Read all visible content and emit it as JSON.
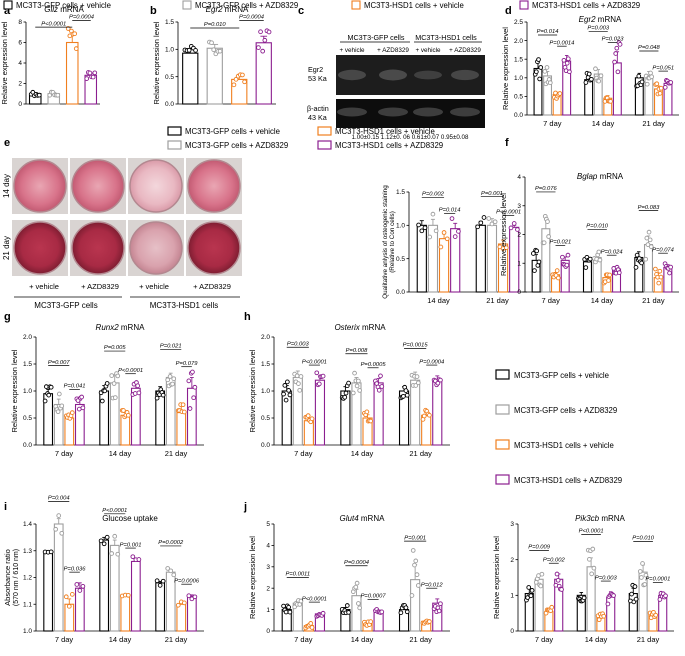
{
  "colors": {
    "gfp_vehicle": "#000000",
    "gfp_azd": "#9e9e9e",
    "hsd_vehicle": "#f07f1f",
    "hsd_azd": "#8b1e8f",
    "text": "#000000"
  },
  "legend": {
    "items": [
      {
        "label": "MC3T3-GFP cells + vehicle",
        "color": "#000000"
      },
      {
        "label": "MC3T3-GFP cells + AZD8329",
        "color": "#9e9e9e"
      },
      {
        "label": "MC3T3-HSD1 cells + vehicle",
        "color": "#f07f1f"
      },
      {
        "label": "MC3T3-HSD1 cells + AZD8329",
        "color": "#8b1e8f"
      }
    ]
  },
  "western": {
    "letter": "c",
    "group_labels": [
      "MC3T3-GFP cells",
      "MC3T3-HSD1 cells"
    ],
    "lane_labels": [
      "+ vehicle",
      "+ AZD8329",
      "+ vehicle",
      "+ AZD8329"
    ],
    "band_labels": [
      {
        "name": "Egr2",
        "size": "53 Ka"
      },
      {
        "name": "β-actin",
        "size": "43 Ka"
      }
    ],
    "quant": "1.00±0.15  1.12±0. 06  0.61±0.07  0.95±0.08",
    "band_intensity": [
      1.0,
      1.12,
      0.61,
      0.95
    ]
  },
  "staining": {
    "letter": "e",
    "row_labels": [
      "14 day",
      "21 day"
    ],
    "lane_labels": [
      "+ vehicle",
      "+ AZD8329",
      "+ vehicle",
      "+ AZD8329"
    ],
    "group_labels": [
      "MC3T3-GFP cells",
      "MC3T3-HSD1 cells"
    ]
  },
  "chart_data": [
    {
      "id": "a",
      "letter": "a",
      "type": "bar",
      "title": "Gilz mRNA",
      "title_italic": "Gilz",
      "title_rest": " mRNA",
      "ylabel": "Relative expression level",
      "ylim": [
        0,
        8
      ],
      "yticks": [
        0,
        2,
        4,
        6,
        8
      ],
      "categories": [
        "MC3T3-GFP + vehicle",
        "MC3T3-GFP + AZD8329",
        "MC3T3-HSD1 + vehicle",
        "MC3T3-HSD1 + AZD8329"
      ],
      "values": [
        1.0,
        1.0,
        6.0,
        2.8
      ],
      "errors": [
        0.1,
        0.1,
        0.7,
        0.2
      ],
      "brackets": [
        {
          "from": 0,
          "to": 2,
          "label": "P<0.0001"
        },
        {
          "from": 2,
          "to": 3,
          "label": "P=0.0004"
        }
      ]
    },
    {
      "id": "b",
      "letter": "b",
      "type": "bar",
      "title": "Egr2 mRNA",
      "title_italic": "Egr2",
      "title_rest": " mRNA",
      "ylabel": "Relative expression level",
      "ylim": [
        0,
        1.5
      ],
      "yticks": [
        0.0,
        0.5,
        1.0,
        1.5
      ],
      "categories": [
        "MC3T3-GFP + vehicle",
        "MC3T3-GFP + AZD8329",
        "MC3T3-HSD1 + vehicle",
        "MC3T3-HSD1 + AZD8329"
      ],
      "values": [
        0.93,
        1.02,
        0.45,
        1.12
      ],
      "errors": [
        0.08,
        0.07,
        0.05,
        0.12
      ],
      "brackets": [
        {
          "from": 0,
          "to": 2,
          "label": "P=0.010"
        },
        {
          "from": 2,
          "to": 3,
          "label": "P=0.0004"
        }
      ]
    },
    {
      "id": "d",
      "letter": "d",
      "type": "bar",
      "title": "Egr2 mRNA",
      "title_italic": "Egr2",
      "title_rest": " mRNA",
      "ylabel": "Relative expression level",
      "ylim": [
        0,
        2.5
      ],
      "yticks": [
        0.0,
        0.5,
        1.0,
        1.5,
        2.0,
        2.5
      ],
      "categories": [
        "7 day",
        "14 day",
        "21 day"
      ],
      "series": [
        {
          "name": "MC3T3-GFP cells + vehicle",
          "values": [
            1.25,
            0.95,
            1.0
          ],
          "errors": [
            0.15,
            0.1,
            0.12
          ]
        },
        {
          "name": "MC3T3-GFP cells + AZD8329",
          "values": [
            1.05,
            1.1,
            1.05
          ],
          "errors": [
            0.12,
            0.12,
            0.12
          ]
        },
        {
          "name": "MC3T3-HSD1 cells + vehicle",
          "values": [
            0.55,
            0.45,
            0.7
          ],
          "errors": [
            0.06,
            0.07,
            0.08
          ]
        },
        {
          "name": "MC3T3-HSD1 cells + AZD8329",
          "values": [
            1.45,
            1.4,
            0.85
          ],
          "errors": [
            0.15,
            0.3,
            0.08
          ]
        }
      ],
      "brackets": [
        {
          "group": 0,
          "from": 0,
          "to": 2,
          "label": "P=0.014"
        },
        {
          "group": 0,
          "from": 2,
          "to": 3,
          "label": "P=0.0014"
        },
        {
          "group": 1,
          "from": 0,
          "to": 2,
          "label": "P=0.003"
        },
        {
          "group": 1,
          "from": 2,
          "to": 3,
          "label": "P=0.023"
        },
        {
          "group": 2,
          "from": 0,
          "to": 2,
          "label": "P=0.048"
        },
        {
          "group": 2,
          "from": 2,
          "to": 3,
          "label": "P=0.051"
        }
      ]
    },
    {
      "id": "e",
      "letter": "",
      "type": "bar",
      "title": "",
      "ylabel": "Qualitative anlysis of osteogenic staining (Relative to Con cells)",
      "ylim": [
        0,
        1.5
      ],
      "yticks": [
        0.0,
        0.5,
        1.0,
        1.5
      ],
      "categories": [
        "14 day",
        "21 day"
      ],
      "series": [
        {
          "name": "MC3T3-GFP cells + vehicle",
          "values": [
            1.0,
            1.0
          ],
          "errors": [
            0.07,
            0.06
          ]
        },
        {
          "name": "MC3T3-GFP cells + AZD8329",
          "values": [
            1.0,
            1.0
          ],
          "errors": [
            0.09,
            0.1
          ]
        },
        {
          "name": "MC3T3-HSD1 cells + vehicle",
          "values": [
            0.8,
            0.72
          ],
          "errors": [
            0.07,
            0.06
          ]
        },
        {
          "name": "MC3T3-HSD1 cells + AZD8329",
          "values": [
            0.95,
            0.97
          ],
          "errors": [
            0.08,
            0.03
          ]
        }
      ],
      "brackets": [
        {
          "group": 0,
          "from": 0,
          "to": 2,
          "label": "P=0.002"
        },
        {
          "group": 0,
          "from": 2,
          "to": 3,
          "label": "P=0.014"
        },
        {
          "group": 1,
          "from": 0,
          "to": 2,
          "label": "P=0.001"
        },
        {
          "group": 1,
          "from": 2,
          "to": 3,
          "label": "P<0.0001"
        }
      ]
    },
    {
      "id": "f",
      "letter": "f",
      "type": "bar",
      "title": "Bglap mRNA",
      "title_italic": "Bglap",
      "title_rest": " mRNA",
      "ylabel": "Relative expression level",
      "ylim": [
        0,
        4
      ],
      "yticks": [
        0,
        1,
        2,
        3,
        4
      ],
      "categories": [
        "7 day",
        "14 day",
        "21 day"
      ],
      "series": [
        {
          "name": "MC3T3-GFP cells + vehicle",
          "values": [
            1.1,
            1.05,
            1.2
          ],
          "errors": [
            0.2,
            0.1,
            0.2
          ]
        },
        {
          "name": "MC3T3-GFP cells + AZD8329",
          "values": [
            2.2,
            1.2,
            1.65
          ],
          "errors": [
            0.4,
            0.1,
            0.3
          ]
        },
        {
          "name": "MC3T3-HSD1 cells + vehicle",
          "values": [
            0.6,
            0.5,
            0.5
          ],
          "errors": [
            0.08,
            0.1,
            0.15
          ]
        },
        {
          "name": "MC3T3-HSD1 cells + AZD8329",
          "values": [
            1.1,
            0.8,
            0.85
          ],
          "errors": [
            0.12,
            0.08,
            0.1
          ]
        }
      ],
      "brackets": [
        {
          "group": 0,
          "from": 0,
          "to": 2,
          "label": "P=0.076"
        },
        {
          "group": 0,
          "from": 2,
          "to": 3,
          "label": "P=0.021"
        },
        {
          "group": 1,
          "from": 0,
          "to": 2,
          "label": "P=0.010"
        },
        {
          "group": 1,
          "from": 2,
          "to": 3,
          "label": "P=0.024"
        },
        {
          "group": 2,
          "from": 0,
          "to": 2,
          "label": "P=0.083"
        },
        {
          "group": 2,
          "from": 2,
          "to": 3,
          "label": "P=0.074"
        }
      ]
    },
    {
      "id": "g",
      "letter": "g",
      "type": "bar",
      "title": "Runx2 mRNA",
      "title_italic": "Runx2",
      "title_rest": " mRNA",
      "ylabel": "Relative expression level",
      "ylim": [
        0,
        2.0
      ],
      "yticks": [
        0.0,
        0.5,
        1.0,
        1.5,
        2.0
      ],
      "categories": [
        "7 day",
        "14 day",
        "21 day"
      ],
      "series": [
        {
          "name": "MC3T3-GFP cells + vehicle",
          "values": [
            0.95,
            1.0,
            1.0
          ],
          "errors": [
            0.08,
            0.1,
            0.08
          ]
        },
        {
          "name": "MC3T3-GFP cells + AZD8329",
          "values": [
            0.75,
            1.15,
            1.25
          ],
          "errors": [
            0.1,
            0.15,
            0.08
          ]
        },
        {
          "name": "MC3T3-HSD1 cells + vehicle",
          "values": [
            0.5,
            0.55,
            0.6
          ],
          "errors": [
            0.06,
            0.05,
            0.15
          ]
        },
        {
          "name": "MC3T3-HSD1 cells + AZD8329",
          "values": [
            0.75,
            1.05,
            1.05
          ],
          "errors": [
            0.08,
            0.07,
            0.2
          ]
        }
      ],
      "brackets": [
        {
          "group": 0,
          "from": 0,
          "to": 2,
          "label": "P=0.007"
        },
        {
          "group": 0,
          "from": 2,
          "to": 3,
          "label": "P=0.041"
        },
        {
          "group": 1,
          "from": 0,
          "to": 2,
          "label": "P=0.005"
        },
        {
          "group": 1,
          "from": 2,
          "to": 3,
          "label": "P<0.0001"
        },
        {
          "group": 2,
          "from": 0,
          "to": 2,
          "label": "P=0.021"
        },
        {
          "group": 2,
          "from": 2,
          "to": 3,
          "label": "P=0.079"
        }
      ]
    },
    {
      "id": "h",
      "letter": "h",
      "type": "bar",
      "title": "Osterix mRNA",
      "title_italic": "Osterix",
      "title_rest": " mRNA",
      "ylabel": "Relative expression level",
      "ylim": [
        0,
        2.0
      ],
      "yticks": [
        0.0,
        0.5,
        1.0,
        1.5,
        2.0
      ],
      "categories": [
        "7 day",
        "14 day",
        "21 day"
      ],
      "series": [
        {
          "name": "MC3T3-GFP cells + vehicle",
          "values": [
            1.0,
            1.0,
            1.0
          ],
          "errors": [
            0.1,
            0.08,
            0.08
          ]
        },
        {
          "name": "MC3T3-GFP cells + AZD8329",
          "values": [
            1.25,
            1.15,
            1.2
          ],
          "errors": [
            0.12,
            0.1,
            0.15
          ]
        },
        {
          "name": "MC3T3-HSD1 cells + vehicle",
          "values": [
            0.45,
            0.5,
            0.55
          ],
          "errors": [
            0.05,
            0.06,
            0.05
          ]
        },
        {
          "name": "MC3T3-HSD1 cells + AZD8329",
          "values": [
            1.2,
            1.15,
            1.2
          ],
          "errors": [
            0.08,
            0.08,
            0.08
          ]
        }
      ],
      "brackets": [
        {
          "group": 0,
          "from": 0,
          "to": 2,
          "label": "P=0.003"
        },
        {
          "group": 0,
          "from": 2,
          "to": 3,
          "label": "P<0.0001"
        },
        {
          "group": 1,
          "from": 0,
          "to": 2,
          "label": "P=0.008"
        },
        {
          "group": 1,
          "from": 2,
          "to": 3,
          "label": "P=0.0005"
        },
        {
          "group": 2,
          "from": 0,
          "to": 2,
          "label": "P=0.0015"
        },
        {
          "group": 2,
          "from": 2,
          "to": 3,
          "label": "P=0.0004"
        }
      ]
    },
    {
      "id": "i",
      "letter": "i",
      "type": "bar",
      "title": "Glucose uptake",
      "title_italic": "",
      "title_rest": "Glucose uptake",
      "ylabel": "Absorbance ratio (570 nm / 610 nm)",
      "ylim": [
        1.0,
        1.4
      ],
      "yticks": [
        1.0,
        1.1,
        1.2,
        1.3,
        1.4
      ],
      "categories": [
        "7 day",
        "14 day",
        "21 day"
      ],
      "series": [
        {
          "name": "MC3T3-GFP cells + vehicle",
          "values": [
            1.29,
            1.34,
            1.18
          ],
          "errors": [
            0.01,
            0.01,
            0.005
          ]
        },
        {
          "name": "MC3T3-GFP cells + AZD8329",
          "values": [
            1.4,
            1.32,
            1.22
          ],
          "errors": [
            0.02,
            0.02,
            0.01
          ]
        },
        {
          "name": "MC3T3-HSD1 cells + vehicle",
          "values": [
            1.1,
            1.13,
            1.1
          ],
          "errors": [
            0.02,
            0.005,
            0.005
          ]
        },
        {
          "name": "MC3T3-HSD1 cells + AZD8329",
          "values": [
            1.16,
            1.26,
            1.13
          ],
          "errors": [
            0.02,
            0.01,
            0.005
          ]
        }
      ],
      "brackets": [
        {
          "group": 0,
          "from": 0,
          "to": 2,
          "label": "P=0.004"
        },
        {
          "group": 0,
          "from": 2,
          "to": 3,
          "label": "P=0.036"
        },
        {
          "group": 1,
          "from": 0,
          "to": 2,
          "label": "P<0.0001"
        },
        {
          "group": 1,
          "from": 2,
          "to": 3,
          "label": "P=0.001"
        },
        {
          "group": 2,
          "from": 0,
          "to": 2,
          "label": "P=0.0002"
        },
        {
          "group": 2,
          "from": 2,
          "to": 3,
          "label": "P=0.0006"
        }
      ]
    },
    {
      "id": "j",
      "letter": "j",
      "type": "bar",
      "title": "Glut4 mRNA",
      "title_italic": "Glut4",
      "title_rest": " mRNA",
      "ylabel": "Relative expression level",
      "ylim": [
        0,
        5
      ],
      "yticks": [
        0,
        1,
        2,
        3,
        4,
        5
      ],
      "categories": [
        "7 day",
        "14 day",
        "21 day"
      ],
      "series": [
        {
          "name": "MC3T3-GFP cells + vehicle",
          "values": [
            1.0,
            1.0,
            1.0
          ],
          "errors": [
            0.1,
            0.1,
            0.1
          ]
        },
        {
          "name": "MC3T3-GFP cells + AZD8329",
          "values": [
            1.3,
            1.65,
            2.4
          ],
          "errors": [
            0.1,
            0.3,
            0.7
          ]
        },
        {
          "name": "MC3T3-HSD1 cells + vehicle",
          "values": [
            0.25,
            0.35,
            0.45
          ],
          "errors": [
            0.04,
            0.06,
            0.05
          ]
        },
        {
          "name": "MC3T3-HSD1 cells + AZD8329",
          "values": [
            0.8,
            0.9,
            1.3
          ],
          "errors": [
            0.05,
            0.08,
            0.2
          ]
        }
      ],
      "brackets": [
        {
          "group": 0,
          "from": 0,
          "to": 2,
          "label": "P=0.0011"
        },
        {
          "group": 0,
          "from": 2,
          "to": 3,
          "label": "P<0.0001"
        },
        {
          "group": 1,
          "from": 0,
          "to": 2,
          "label": "P=0.0004"
        },
        {
          "group": 1,
          "from": 2,
          "to": 3,
          "label": "P=0.0007"
        },
        {
          "group": 2,
          "from": 0,
          "to": 2,
          "label": "P=0.001"
        },
        {
          "group": 2,
          "from": 2,
          "to": 3,
          "label": "P=0.012"
        }
      ]
    },
    {
      "id": "k",
      "letter": "",
      "type": "bar",
      "title": "Pik3cb mRNA",
      "title_italic": "Pik3cb",
      "title_rest": " mRNA",
      "ylabel": "Relative expression level",
      "ylim": [
        0,
        3
      ],
      "yticks": [
        0,
        1,
        2,
        3
      ],
      "categories": [
        "7 day",
        "14 day",
        "21 day"
      ],
      "series": [
        {
          "name": "MC3T3-GFP cells + vehicle",
          "values": [
            1.05,
            1.0,
            1.05
          ],
          "errors": [
            0.15,
            0.08,
            0.15
          ]
        },
        {
          "name": "MC3T3-GFP cells + AZD8329",
          "values": [
            1.45,
            1.8,
            1.65
          ],
          "errors": [
            0.1,
            0.25,
            0.2
          ]
        },
        {
          "name": "MC3T3-HSD1 cells + vehicle",
          "values": [
            0.55,
            0.4,
            0.45
          ],
          "errors": [
            0.06,
            0.06,
            0.04
          ]
        },
        {
          "name": "MC3T3-HSD1 cells + AZD8329",
          "values": [
            1.45,
            0.95,
            1.0
          ],
          "errors": [
            0.15,
            0.15,
            0.06
          ]
        }
      ],
      "brackets": [
        {
          "group": 0,
          "from": 0,
          "to": 2,
          "label": "P=0.009"
        },
        {
          "group": 0,
          "from": 2,
          "to": 3,
          "label": "P=0.002"
        },
        {
          "group": 1,
          "from": 0,
          "to": 2,
          "label": "P<0.0001"
        },
        {
          "group": 1,
          "from": 2,
          "to": 3,
          "label": "P=0.003"
        },
        {
          "group": 2,
          "from": 0,
          "to": 2,
          "label": "P=0.010"
        },
        {
          "group": 2,
          "from": 2,
          "to": 3,
          "label": "P=0.0001"
        }
      ]
    }
  ]
}
